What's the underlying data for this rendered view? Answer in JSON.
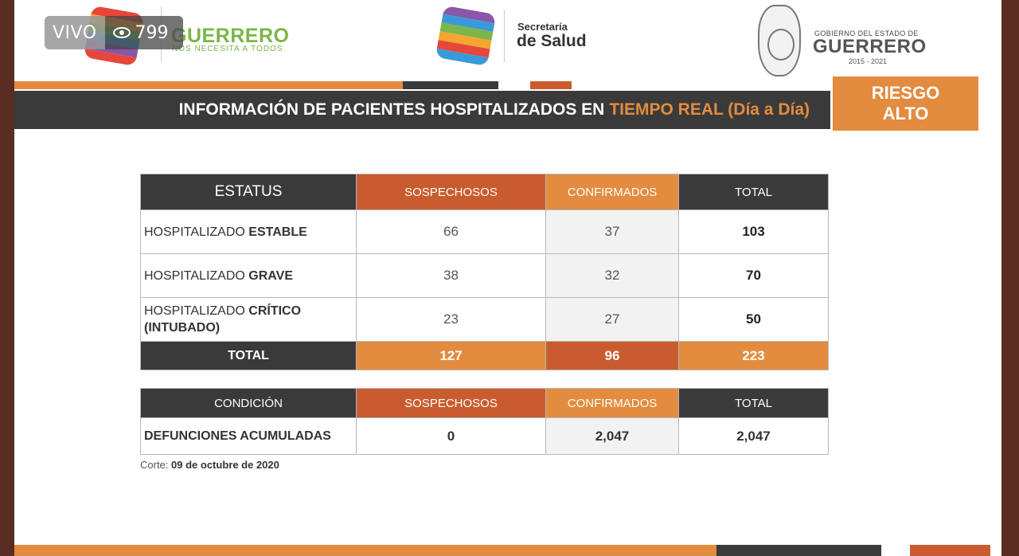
{
  "live": {
    "status": "VIVO",
    "viewers": "799"
  },
  "header": {
    "guerrero_logo": "GUERRERO",
    "guerrero_tagline": "NOS NECESITA A TODOS",
    "secretaria_line1": "Secretaría",
    "secretaria_line2": "de Salud",
    "gobierno_line1": "GOBIERNO DEL ESTADO DE",
    "gobierno_line2": "GUERRERO",
    "gobierno_years": "2015 - 2021"
  },
  "title": {
    "main": "INFORMACIÓN DE PACIENTES HOSPITALIZADOS EN",
    "highlight": "TIEMPO REAL (Día a Día)"
  },
  "risk": {
    "line1": "RIESGO",
    "line2": "ALTO"
  },
  "hospital_table": {
    "headers": {
      "status": "ESTATUS",
      "suspects": "SOSPECHOSOS",
      "confirmed": "CONFIRMADOS",
      "total": "TOTAL"
    },
    "rows": [
      {
        "prefix": "HOSPITALIZADO ",
        "bold": "ESTABLE",
        "suspects": "66",
        "confirmed": "37",
        "total": "103"
      },
      {
        "prefix": "HOSPITALIZADO ",
        "bold": "GRAVE",
        "suspects": "38",
        "confirmed": "32",
        "total": "70"
      },
      {
        "prefix": "HOSPITALIZADO ",
        "bold": "CRÍTICO (INTUBADO)",
        "suspects": "23",
        "confirmed": "27",
        "total": "50"
      }
    ],
    "total_row": {
      "label": "TOTAL",
      "suspects": "127",
      "confirmed": "96",
      "total": "223"
    }
  },
  "deaths_table": {
    "headers": {
      "condition": "CONDICIÓN",
      "suspects": "SOSPECHOSOS",
      "confirmed": "CONFIRMADOS",
      "total": "TOTAL"
    },
    "row": {
      "label": "DEFUNCIONES ACUMULADAS",
      "suspects": "0",
      "confirmed": "2,047",
      "total": "2,047"
    }
  },
  "cutoff": {
    "label": "Corte:",
    "date": "09 de octubre de 2020"
  },
  "colors": {
    "dark": "#3a3a3a",
    "orange": "#e38c3f",
    "rust": "#c95c2e",
    "green": "#7ab648"
  }
}
